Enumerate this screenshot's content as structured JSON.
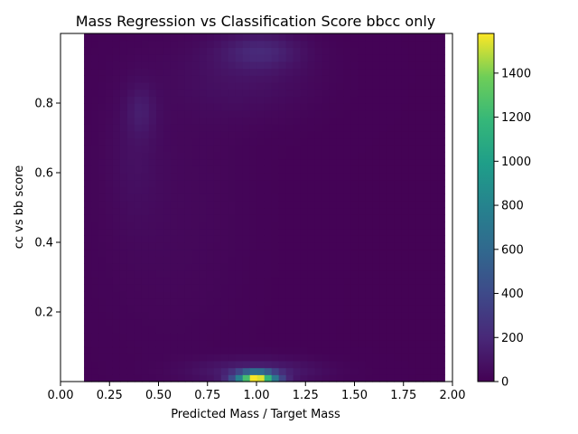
{
  "chart_data": {
    "type": "heatmap",
    "title": "Mass Regression vs Classification Score bbcc only",
    "xlabel": "Predicted Mass / Target Mass",
    "ylabel": "cc vs bb score",
    "xlim": [
      0.0,
      2.0
    ],
    "ylim": [
      0.0,
      1.0
    ],
    "x_ticks": [
      "0.00",
      "0.25",
      "0.50",
      "0.75",
      "1.00",
      "1.25",
      "1.50",
      "1.75",
      "2.00"
    ],
    "y_ticks": [
      "0.2",
      "0.4",
      "0.6",
      "0.8"
    ],
    "data_x_range": [
      0.12,
      1.96
    ],
    "grid": false,
    "colormap": "viridis",
    "colorbar": {
      "min": 0,
      "max": 1580,
      "ticks": [
        "0",
        "200",
        "400",
        "600",
        "800",
        "1000",
        "1200",
        "1400"
      ]
    },
    "features": [
      {
        "description": "bright peak at low score",
        "x": 1.0,
        "y": 0.02,
        "value": 1580
      },
      {
        "description": "secondary peak at high score",
        "x": 1.0,
        "y": 0.95,
        "value": 300
      },
      {
        "description": "ridge at high score",
        "x": 0.4,
        "y": 0.78,
        "value": 260
      }
    ]
  }
}
